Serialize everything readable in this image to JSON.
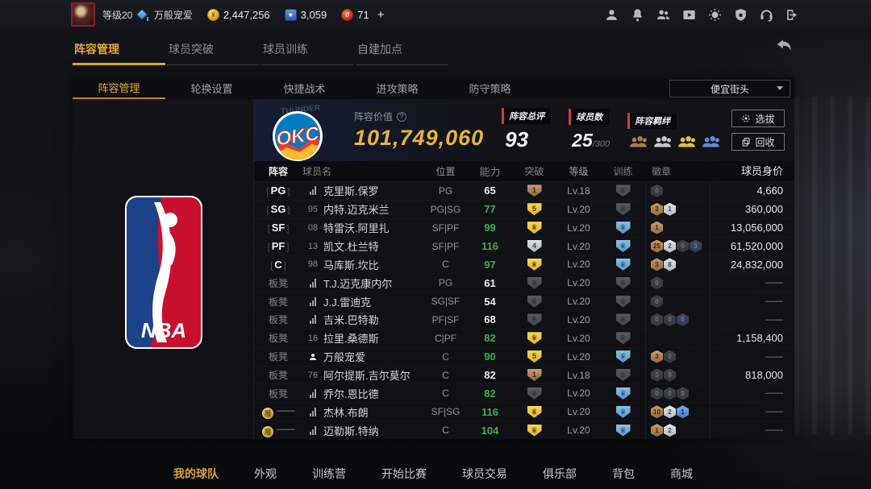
{
  "topbar": {
    "level": "等级20",
    "grade_sub": "Ⅱ",
    "username": "万般宠爱",
    "currencies": [
      {
        "icon": "gold-coin",
        "value": "2,447,256"
      },
      {
        "icon": "star-points",
        "value": "3,059"
      },
      {
        "icon": "red-coupon",
        "value": "71"
      }
    ],
    "add_label": "+",
    "icons": [
      "profile",
      "notifications",
      "friends",
      "video",
      "settings",
      "security",
      "support",
      "logout"
    ]
  },
  "main_tabs": [
    {
      "label": "阵容管理",
      "active": true
    },
    {
      "label": "球员突破",
      "active": false
    },
    {
      "label": "球员训练",
      "active": false
    },
    {
      "label": "自建加点",
      "active": false
    }
  ],
  "sub_tabs": [
    {
      "label": "阵容管理",
      "active": true
    },
    {
      "label": "轮换设置",
      "active": false
    },
    {
      "label": "快捷战术",
      "active": false
    },
    {
      "label": "进攻策略",
      "active": false
    },
    {
      "label": "防守策略",
      "active": false
    }
  ],
  "lineup_dropdown": {
    "value": "便宜街头"
  },
  "team": {
    "value_label": "阵容价值",
    "value": "101,749,060",
    "rating_label": "阵容总评",
    "rating": "93",
    "count_label": "球员数",
    "count": "25",
    "count_max": "/300",
    "bonds_label": "阵容羁绊",
    "bonds": [
      "bronze",
      "silver",
      "gold",
      "blue"
    ],
    "select_button": "选拔",
    "recycle_button": "回收"
  },
  "table": {
    "headers": [
      "阵容",
      "球员名",
      "位置",
      "能力",
      "突破",
      "等级",
      "训练",
      "徽章",
      "球员身价"
    ],
    "rows": [
      {
        "slot": {
          "type": "starter",
          "label": "PG"
        },
        "icon": {
          "type": "chart"
        },
        "name": "克里斯.保罗",
        "pos": "PG",
        "ability": {
          "value": "65",
          "high": false
        },
        "breakthrough": {
          "tier": "bronze",
          "label": "1"
        },
        "level": "Lv.18",
        "training": {
          "tier": "grey"
        },
        "badges": [
          {
            "tier": "dim",
            "num": "0"
          }
        ],
        "value": "4,660"
      },
      {
        "slot": {
          "type": "starter",
          "label": "SG"
        },
        "icon": {
          "type": "num",
          "value": "95"
        },
        "name": "内特.迈克米兰",
        "pos": "PG|SG",
        "ability": {
          "value": "77",
          "high": true
        },
        "breakthrough": {
          "tier": "gold",
          "label": "5"
        },
        "level": "Lv.20",
        "training": {
          "tier": "grey"
        },
        "badges": [
          {
            "tier": "bronze",
            "num": "3"
          },
          {
            "tier": "silver",
            "num": "1"
          }
        ],
        "value": "360,000"
      },
      {
        "slot": {
          "type": "starter",
          "label": "SF"
        },
        "icon": {
          "type": "num",
          "value": "08"
        },
        "name": "特雷沃.阿里扎",
        "pos": "SF|PF",
        "ability": {
          "value": "99",
          "high": true
        },
        "breakthrough": {
          "tier": "gold",
          "label": "crown"
        },
        "level": "Lv.20",
        "training": {
          "tier": "blue"
        },
        "badges": [
          {
            "tier": "bronze",
            "num": "1"
          }
        ],
        "value": "13,056,000"
      },
      {
        "slot": {
          "type": "starter",
          "label": "PF"
        },
        "icon": {
          "type": "num",
          "value": "13"
        },
        "name": "凯文.杜兰特",
        "pos": "SF|PF",
        "ability": {
          "value": "116",
          "high": true
        },
        "breakthrough": {
          "tier": "silver",
          "label": "4"
        },
        "level": "Lv.20",
        "training": {
          "tier": "blue"
        },
        "badges": [
          {
            "tier": "bronze",
            "num": "25"
          },
          {
            "tier": "silver",
            "num": "2"
          },
          {
            "tier": "dim",
            "num": "0"
          },
          {
            "tier": "dim-blue",
            "num": "3"
          }
        ],
        "value": "61,520,000"
      },
      {
        "slot": {
          "type": "starter",
          "label": "C"
        },
        "icon": {
          "type": "num",
          "value": "98"
        },
        "name": "马库斯.坎比",
        "pos": "C",
        "ability": {
          "value": "97",
          "high": true
        },
        "breakthrough": {
          "tier": "gold",
          "label": "crown"
        },
        "level": "Lv.20",
        "training": {
          "tier": "blue"
        },
        "badges": [
          {
            "tier": "bronze",
            "num": "3"
          },
          {
            "tier": "silver",
            "num": "8"
          }
        ],
        "value": "24,832,000"
      },
      {
        "slot": {
          "type": "bench",
          "label": "板凳"
        },
        "icon": {
          "type": "chart"
        },
        "name": "T.J.迈克康内尔",
        "pos": "PG",
        "ability": {
          "value": "61",
          "high": false
        },
        "breakthrough": {
          "tier": "grey",
          "label": "crown"
        },
        "level": "Lv.20",
        "training": {
          "tier": "grey"
        },
        "badges": [
          {
            "tier": "dim",
            "num": "0"
          }
        ],
        "value": "——"
      },
      {
        "slot": {
          "type": "bench",
          "label": "板凳"
        },
        "icon": {
          "type": "chart"
        },
        "name": "J.J.雷迪克",
        "pos": "SG|SF",
        "ability": {
          "value": "54",
          "high": false
        },
        "breakthrough": {
          "tier": "grey",
          "label": "crown"
        },
        "level": "Lv.20",
        "training": {
          "tier": "grey"
        },
        "badges": [
          {
            "tier": "dim",
            "num": "0"
          }
        ],
        "value": "——"
      },
      {
        "slot": {
          "type": "bench",
          "label": "板凳"
        },
        "icon": {
          "type": "chart"
        },
        "name": "吉米.巴特勒",
        "pos": "PF|SF",
        "ability": {
          "value": "68",
          "high": false
        },
        "breakthrough": {
          "tier": "grey",
          "label": "crown"
        },
        "level": "Lv.20",
        "training": {
          "tier": "grey"
        },
        "badges": [
          {
            "tier": "dim",
            "num": "0"
          },
          {
            "tier": "dim",
            "num": "0"
          },
          {
            "tier": "dim-blue",
            "num": "0"
          }
        ],
        "value": "——"
      },
      {
        "slot": {
          "type": "bench",
          "label": "板凳"
        },
        "icon": {
          "type": "num",
          "value": "16"
        },
        "name": "拉里.桑德斯",
        "pos": "C|PF",
        "ability": {
          "value": "82",
          "high": true
        },
        "breakthrough": {
          "tier": "gold",
          "label": "crown"
        },
        "level": "Lv.20",
        "training": {
          "tier": "grey"
        },
        "badges": [],
        "value": "1,158,400"
      },
      {
        "slot": {
          "type": "bench",
          "label": "板凳"
        },
        "icon": {
          "type": "person"
        },
        "name": "万般宠爱",
        "pos": "C",
        "ability": {
          "value": "90",
          "high": true
        },
        "breakthrough": {
          "tier": "gold",
          "label": "5"
        },
        "level": "Lv.20",
        "training": {
          "tier": "blue"
        },
        "badges": [
          {
            "tier": "bronze",
            "num": "3"
          },
          {
            "tier": "dim",
            "num": "0"
          }
        ],
        "value": "——"
      },
      {
        "slot": {
          "type": "bench",
          "label": "板凳"
        },
        "icon": {
          "type": "num",
          "value": "76"
        },
        "name": "阿尔提斯.吉尔莫尔",
        "pos": "C",
        "ability": {
          "value": "82",
          "high": false
        },
        "breakthrough": {
          "tier": "bronze",
          "label": "1"
        },
        "level": "Lv.18",
        "training": {
          "tier": "grey"
        },
        "badges": [
          {
            "tier": "dim",
            "num": "3"
          },
          {
            "tier": "dim",
            "num": "8"
          }
        ],
        "value": "818,000"
      },
      {
        "slot": {
          "type": "bench",
          "label": "板凳"
        },
        "icon": {
          "type": "chart"
        },
        "name": "乔尔.恩比德",
        "pos": "C",
        "ability": {
          "value": "82",
          "high": true
        },
        "breakthrough": {
          "tier": "grey",
          "label": "crown"
        },
        "level": "Lv.20",
        "training": {
          "tier": "blue"
        },
        "badges": [
          {
            "tier": "dim",
            "num": "0"
          },
          {
            "tier": "dim",
            "num": "0"
          },
          {
            "tier": "dim",
            "num": "0"
          }
        ],
        "value": "——"
      },
      {
        "slot": {
          "type": "limited",
          "label": "——",
          "icon_char": "限"
        },
        "icon": {
          "type": "chart"
        },
        "name": "杰林.布朗",
        "pos": "SF|SG",
        "ability": {
          "value": "116",
          "high": true
        },
        "breakthrough": {
          "tier": "gold",
          "label": "crown"
        },
        "level": "Lv.20",
        "training": {
          "tier": "blue"
        },
        "badges": [
          {
            "tier": "bronze",
            "num": "10"
          },
          {
            "tier": "silver",
            "num": "2"
          },
          {
            "tier": "blue",
            "num": "1"
          }
        ],
        "value": "——"
      },
      {
        "slot": {
          "type": "limited",
          "label": "——",
          "icon_char": "限"
        },
        "icon": {
          "type": "chart"
        },
        "name": "迈勒斯.特纳",
        "pos": "C",
        "ability": {
          "value": "104",
          "high": true
        },
        "breakthrough": {
          "tier": "gold",
          "label": "crown"
        },
        "level": "Lv.20",
        "training": {
          "tier": "blue"
        },
        "badges": [
          {
            "tier": "bronze",
            "num": "1"
          },
          {
            "tier": "silver",
            "num": "2"
          }
        ],
        "value": "——"
      }
    ]
  },
  "bottom_nav": [
    {
      "label": "我的球队",
      "active": true
    },
    {
      "label": "外观",
      "active": false
    },
    {
      "label": "训练营",
      "active": false
    },
    {
      "label": "开始比赛",
      "active": false
    },
    {
      "label": "球员交易",
      "active": false
    },
    {
      "label": "俱乐部",
      "active": false
    },
    {
      "label": "背包",
      "active": false
    },
    {
      "label": "商城",
      "active": false
    }
  ]
}
